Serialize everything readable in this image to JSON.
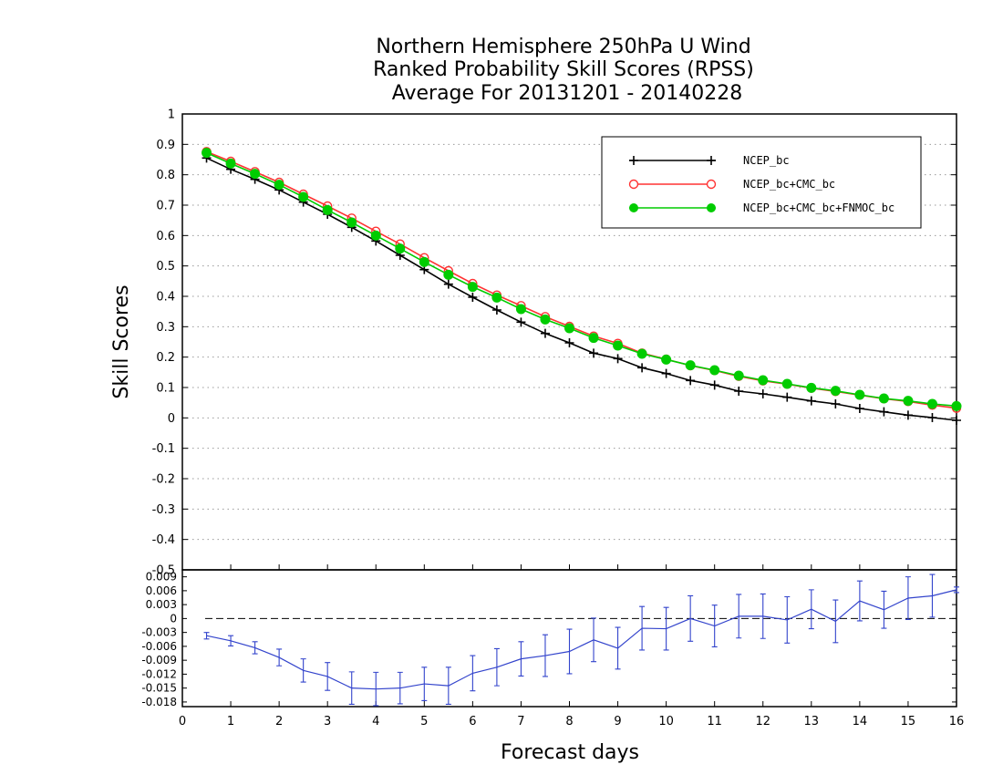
{
  "chart_data": [
    {
      "type": "line",
      "title_lines": [
        "Northern Hemisphere 250hPa U Wind",
        "Ranked Probability Skill Scores (RPSS)",
        "Average For 20131201 - 20140228"
      ],
      "xlabel": "Forecast days",
      "ylabel": "Skill Scores",
      "xlim": [
        0,
        16
      ],
      "ylim": [
        -0.5,
        1
      ],
      "x_ticks": [
        "0",
        "1",
        "2",
        "3",
        "4",
        "5",
        "6",
        "7",
        "8",
        "9",
        "10",
        "11",
        "12",
        "13",
        "14",
        "15",
        "16"
      ],
      "y_ticks": [
        "1",
        "0.9",
        "0.8",
        "0.7",
        "0.6",
        "0.5",
        "0.4",
        "0.3",
        "0.2",
        "0.1",
        "0",
        "-0.1",
        "-0.2",
        "-0.3",
        "-0.4",
        "-0.5"
      ],
      "grid": true,
      "legend_position": "top-right",
      "x": [
        0.5,
        1,
        1.5,
        2,
        2.5,
        3,
        3.5,
        4,
        4.5,
        5,
        5.5,
        6,
        6.5,
        7,
        7.5,
        8,
        8.5,
        9,
        9.5,
        10,
        10.5,
        11,
        11.5,
        12,
        12.5,
        13,
        13.5,
        14,
        14.5,
        15,
        15.5,
        16
      ],
      "series": [
        {
          "name": "NCEP_bc",
          "color": "#000000",
          "marker": "plus",
          "values": [
            0.855,
            0.818,
            0.785,
            0.75,
            0.71,
            0.67,
            0.627,
            0.582,
            0.535,
            0.488,
            0.44,
            0.397,
            0.355,
            0.315,
            0.278,
            0.247,
            0.213,
            0.195,
            0.165,
            0.146,
            0.123,
            0.108,
            0.088,
            0.079,
            0.068,
            0.056,
            0.046,
            0.031,
            0.02,
            0.009,
            0.001,
            -0.008
          ]
        },
        {
          "name": "NCEP_bc+CMC_bc",
          "color": "#ff3333",
          "marker": "open-circle",
          "values": [
            0.876,
            0.844,
            0.81,
            0.775,
            0.736,
            0.697,
            0.657,
            0.614,
            0.572,
            0.527,
            0.484,
            0.442,
            0.404,
            0.369,
            0.333,
            0.301,
            0.269,
            0.245,
            0.213,
            0.193,
            0.172,
            0.156,
            0.137,
            0.122,
            0.111,
            0.098,
            0.087,
            0.075,
            0.063,
            0.054,
            0.042,
            0.032
          ]
        },
        {
          "name": "NCEP_bc+CMC_bc+FNMOC_bc",
          "color": "#00cc00",
          "marker": "filled-circle",
          "values": [
            0.872,
            0.837,
            0.803,
            0.767,
            0.727,
            0.684,
            0.643,
            0.6,
            0.557,
            0.513,
            0.471,
            0.431,
            0.396,
            0.358,
            0.324,
            0.295,
            0.263,
            0.238,
            0.211,
            0.192,
            0.173,
            0.157,
            0.139,
            0.124,
            0.112,
            0.099,
            0.089,
            0.076,
            0.064,
            0.056,
            0.046,
            0.039
          ]
        }
      ]
    },
    {
      "type": "line",
      "xlabel": "Forecast days",
      "xlim": [
        0,
        16
      ],
      "ylim": [
        -0.019,
        0.0105
      ],
      "y_ticks": [
        "0.009",
        "0.006",
        "0.003",
        "0",
        "-0.003",
        "-0.006",
        "-0.009",
        "-0.012",
        "-0.015",
        "-0.018"
      ],
      "zero_line": "dashed",
      "x": [
        0.5,
        1,
        1.5,
        2,
        2.5,
        3,
        3.5,
        4,
        4.5,
        5,
        5.5,
        6,
        6.5,
        7,
        7.5,
        8,
        8.5,
        9,
        9.5,
        10,
        10.5,
        11,
        11.5,
        12,
        12.5,
        13,
        13.5,
        14,
        14.5,
        15,
        15.5,
        16
      ],
      "series": [
        {
          "color": "#3344cc",
          "error_bars": true,
          "values": [
            -0.0037,
            -0.0048,
            -0.0063,
            -0.0084,
            -0.0112,
            -0.0125,
            -0.015,
            -0.0152,
            -0.015,
            -0.0141,
            -0.0145,
            -0.0118,
            -0.0105,
            -0.0087,
            -0.008,
            -0.0071,
            -0.0046,
            -0.0064,
            -0.0021,
            -0.0022,
            0.0,
            -0.0016,
            0.0005,
            0.0005,
            -0.0003,
            0.002,
            -0.0006,
            0.0038,
            0.0019,
            0.0044,
            0.0049,
            0.0062
          ],
          "errors": [
            0.0007,
            0.0011,
            0.0013,
            0.0018,
            0.0025,
            0.003,
            0.0035,
            0.0036,
            0.0034,
            0.0036,
            0.004,
            0.0038,
            0.004,
            0.0037,
            0.0045,
            0.0048,
            0.0047,
            0.0045,
            0.0047,
            0.0046,
            0.0049,
            0.0045,
            0.0047,
            0.0048,
            0.005,
            0.0042,
            0.0046,
            0.0043,
            0.004,
            0.0046,
            0.0046,
            0.0006
          ]
        }
      ]
    }
  ]
}
